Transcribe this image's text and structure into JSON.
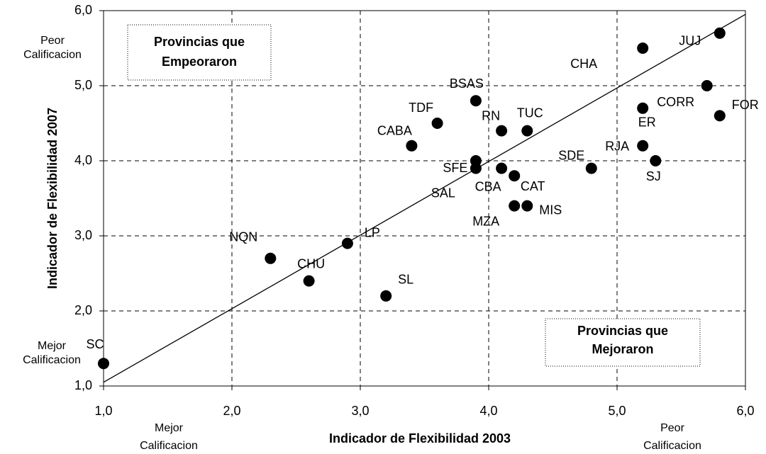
{
  "chart_data": {
    "type": "scatter",
    "x_label": "Indicador de Flexibilidad 2003",
    "y_label": "Indicador de Flexibilidad 2007",
    "xlim": [
      1.0,
      6.0
    ],
    "ylim": [
      1.0,
      6.0
    ],
    "xticks": [
      {
        "value": 1,
        "label": "1,0"
      },
      {
        "value": 2,
        "label": "2,0"
      },
      {
        "value": 3,
        "label": "3,0"
      },
      {
        "value": 4,
        "label": "4,0"
      },
      {
        "value": 5,
        "label": "5,0"
      },
      {
        "value": 6,
        "label": "6,0"
      }
    ],
    "yticks": [
      {
        "value": 1,
        "label": "1,0"
      },
      {
        "value": 2,
        "label": "2,0"
      },
      {
        "value": 3,
        "label": "3,0"
      },
      {
        "value": 4,
        "label": "4,0"
      },
      {
        "value": 5,
        "label": "5,0"
      },
      {
        "value": 6,
        "label": "6,0"
      }
    ],
    "grid": true,
    "color": "#000000",
    "labels": [
      "SC",
      "NQN",
      "CHU",
      "LP",
      "SL",
      "CABA",
      "TDF",
      "BSAS",
      "SFE",
      "SAL",
      "RN",
      "CBA",
      "TUC",
      "CAT",
      "MZA",
      "MIS",
      "SDE",
      "CHA",
      "ER",
      "RJA",
      "SJ",
      "CORR",
      "JUJ",
      "FOR"
    ],
    "x": [
      1.0,
      2.3,
      2.6,
      2.9,
      3.2,
      3.4,
      3.6,
      3.9,
      3.9,
      3.9,
      4.1,
      4.1,
      4.3,
      4.2,
      4.2,
      4.3,
      4.8,
      5.2,
      5.2,
      5.2,
      5.3,
      5.7,
      5.8,
      5.8
    ],
    "values": [
      1.3,
      2.7,
      2.4,
      2.9,
      2.2,
      4.2,
      4.5,
      4.8,
      4.0,
      3.9,
      4.4,
      3.9,
      4.4,
      3.8,
      3.4,
      3.4,
      3.9,
      5.5,
      4.7,
      4.2,
      4.0,
      5.0,
      5.7,
      4.6
    ],
    "reference_line": {
      "x": [
        1.0,
        6.0
      ],
      "y": [
        1.05,
        5.95
      ]
    },
    "boxes": [
      {
        "lines": [
          "Provincias que",
          "Empeoraron"
        ]
      },
      {
        "lines": [
          "Provincias que",
          "Mejoraron"
        ]
      }
    ],
    "annotations": [
      {
        "lines": [
          "Peor",
          "Calificacion"
        ]
      },
      {
        "lines": [
          "Mejor",
          "Calificacion"
        ]
      },
      {
        "lines": [
          "Mejor",
          "Calificacion"
        ]
      },
      {
        "lines": [
          "Peor",
          "Calificacion"
        ]
      }
    ]
  }
}
